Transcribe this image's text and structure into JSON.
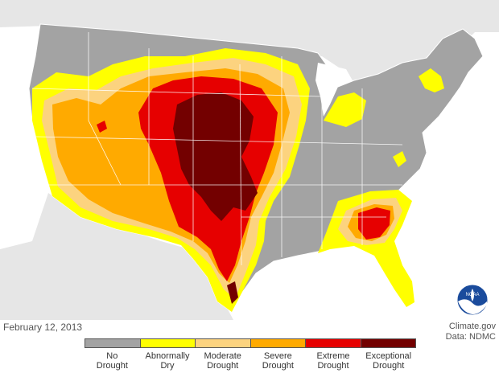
{
  "map": {
    "date": "February 12, 2013",
    "credit_source": "Climate.gov",
    "credit_data": "Data: NDMC",
    "logo_text": "NOAA"
  },
  "legend": [
    {
      "label_line1": "No",
      "label_line2": "Drought",
      "color": "#a3a3a3"
    },
    {
      "label_line1": "Abnormally",
      "label_line2": "Dry",
      "color": "#ffff00"
    },
    {
      "label_line1": "Moderate",
      "label_line2": "Drought",
      "color": "#fcd37f"
    },
    {
      "label_line1": "Severe",
      "label_line2": "Drought",
      "color": "#ffaa00"
    },
    {
      "label_line1": "Extreme",
      "label_line2": "Drought",
      "color": "#e60000"
    },
    {
      "label_line1": "Exceptional",
      "label_line2": "Drought",
      "color": "#730000"
    }
  ],
  "colors": {
    "land_outside": "#e6e6e6",
    "ocean": "#ffffff",
    "state_borders": "#ffffff"
  }
}
